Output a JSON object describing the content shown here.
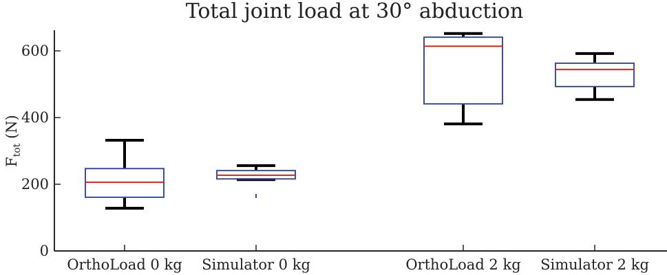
{
  "chart_data": {
    "type": "box",
    "title": "Total joint load at 30° abduction",
    "xlabel": "",
    "ylabel": "F_tot (N)",
    "ylabel_main": "F",
    "ylabel_sub": "tot",
    "ylabel_unit": "(N)",
    "ylim": [
      0,
      660
    ],
    "yticks": [
      0,
      200,
      400,
      600
    ],
    "ytick_labels": [
      "0",
      "200",
      "400",
      "600"
    ],
    "grid": false,
    "legend": null,
    "categories": [
      "OrthoLoad 0 kg",
      "Simulator 0 kg",
      "OrthoLoad 2 kg",
      "Simulator 2 kg"
    ],
    "boxes": [
      {
        "name": "OrthoLoad 0 kg",
        "whisker_low": 128,
        "q1": 161,
        "median": 206,
        "q3": 247,
        "whisker_high": 332,
        "outliers": []
      },
      {
        "name": "Simulator 0 kg",
        "whisker_low": 214,
        "q1": 216,
        "median": 227,
        "q3": 241,
        "whisker_high": 256,
        "outliers": [
          165
        ]
      },
      {
        "name": "OrthoLoad 2 kg",
        "whisker_low": 381,
        "q1": 441,
        "median": 614,
        "q3": 641,
        "whisker_high": 652,
        "outliers": []
      },
      {
        "name": "Simulator 2 kg",
        "whisker_low": 454,
        "q1": 493,
        "median": 544,
        "q3": 563,
        "whisker_high": 592,
        "outliers": []
      }
    ],
    "colors": {
      "box": "#3b4fa0",
      "median": "#e0201c",
      "whisker": "#000000",
      "axis": "#262626",
      "outlier": "#3b4fa0"
    }
  }
}
